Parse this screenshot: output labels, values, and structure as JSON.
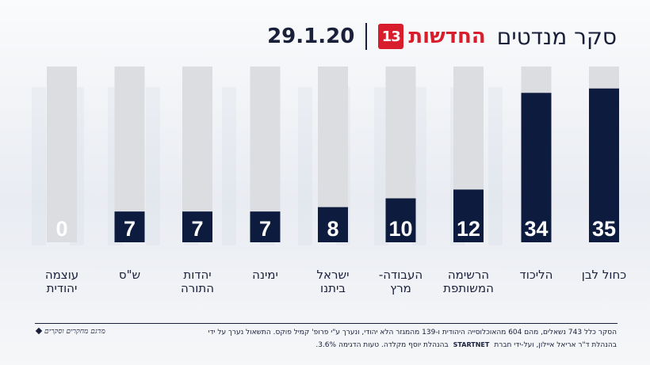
{
  "header": {
    "title": "סקר מנדטים",
    "brand_logo": "13",
    "brand_name": "החדשות",
    "date": "29.1.20"
  },
  "chart_data": {
    "type": "bar",
    "categories": [
      "כחול לבן",
      "הליכוד",
      "הרשימה המשותפת",
      "העבודה-מרץ",
      "ישראל ביתנו",
      "ימינה",
      "יהדות התורה",
      "ש\"ס",
      "עוצמה יהודית"
    ],
    "category_lines": [
      [
        "כחול לבן"
      ],
      [
        "הליכוד"
      ],
      [
        "הרשימה",
        "המשותפת"
      ],
      [
        "העבודה-",
        "מרץ"
      ],
      [
        "ישראל",
        "ביתנו"
      ],
      [
        "ימינה"
      ],
      [
        "יהדות",
        "התורה"
      ],
      [
        "ש\"ס"
      ],
      [
        "עוצמה",
        "יהודית"
      ]
    ],
    "values": [
      35,
      34,
      12,
      10,
      8,
      7,
      7,
      7,
      0
    ],
    "ylim": [
      0,
      40
    ],
    "title": "",
    "xlabel": "",
    "ylabel": "",
    "grid": false,
    "colors": {
      "fill": "#0d1b3e",
      "track": "#dcdde0",
      "value_text": "#ffffff"
    }
  },
  "footer": {
    "line1": "הסקר כלל 743 נשאלים, מהם 604 מהאוכלוסייה היהודית ו-139 מהמגזר הלא יהודי, ונערך ע\"י פרופ' קמיל פוקס. התשאול נערך על ידי",
    "line2": "בהנהלת ד\"ר אריאל איילון, ועל-ידי חברת",
    "startnet": "STARTNET",
    "line2b": "בהנהלת יוסף מקלדה. טעות הדגימה 3.6%.",
    "signature": "מדגם מחקרים וסקרים"
  }
}
